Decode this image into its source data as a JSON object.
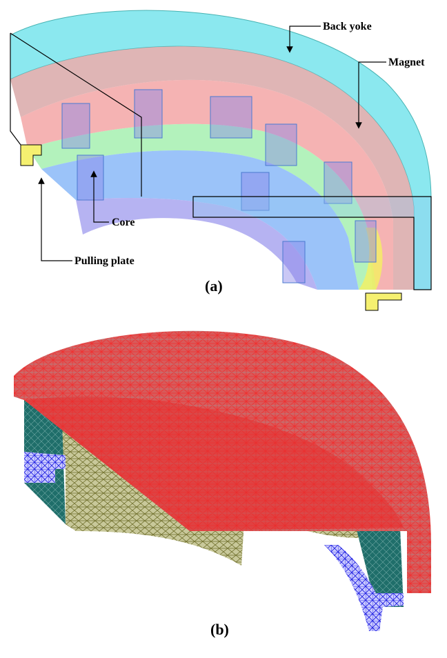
{
  "panel_a": {
    "labels": {
      "back_yoke": "Back yoke",
      "magnet": "Magnet",
      "core": "Core",
      "pulling_plate": "Pulling plate"
    },
    "caption": "(a)"
  },
  "panel_b": {
    "caption": "(b)"
  }
}
